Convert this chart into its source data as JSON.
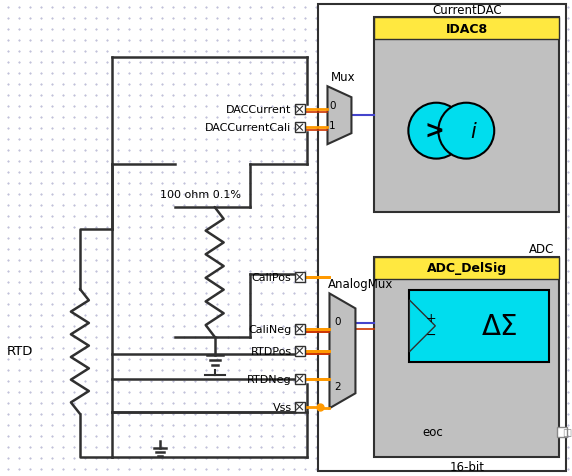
{
  "bg_color": "#E8E8F0",
  "white_bg": "#FFFFFF",
  "yellow": "#FFE840",
  "cyan": "#00DDEE",
  "gray_block": "#C0C0C0",
  "orange_wire": "#FF9900",
  "red_wire": "#CC3300",
  "blue_wire": "#4444CC",
  "black": "#000000",
  "dark_gray": "#303030",
  "medium_gray": "#888888",
  "labels": {
    "CurrentDAC": "CurrentDAC",
    "IDAC8": "IDAC8",
    "Mux": "Mux",
    "ADC": "ADC",
    "ADC_DelSig": "ADC_DelSig",
    "AnalogMux": "AnalogMux",
    "RTD": "RTD",
    "resistor": "100 ohm 0.1%",
    "eoc": "eoc",
    "bits": "16-bit",
    "DACCurrent": "DACCurrent",
    "DACCurrentCali": "DACCurrentCali",
    "CaliPos": "CaliPos",
    "CaliNeg": "CaliNeg",
    "RTDPos": "RTDPos",
    "RTDNeg": "RTDNeg",
    "Vss": "Vss"
  }
}
